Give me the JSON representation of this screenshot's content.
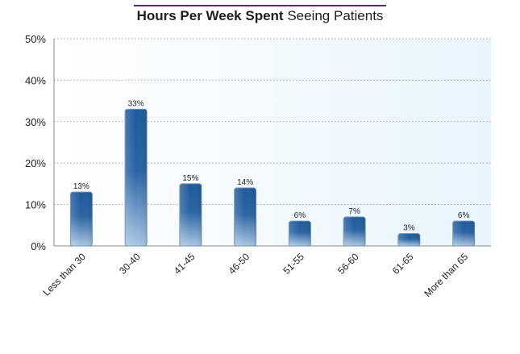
{
  "chart_data": {
    "type": "bar",
    "title": "Hours Per Week Spent Seeing Patients",
    "title_bold": "Hours Per Week Spent",
    "title_regular": "Seeing Patients",
    "categories": [
      "Less than 30",
      "30-40",
      "41-45",
      "46-50",
      "51-55",
      "56-60",
      "61-65",
      "More than 65"
    ],
    "values": [
      13,
      33,
      15,
      14,
      6,
      7,
      3,
      6
    ],
    "data_labels": [
      "13%",
      "33%",
      "15%",
      "14%",
      "6%",
      "7%",
      "3%",
      "6%"
    ],
    "y_ticks": [
      "0%",
      "10%",
      "20%",
      "30%",
      "40%",
      "50%"
    ],
    "y_tick_values": [
      0,
      10,
      20,
      30,
      40,
      50
    ],
    "ylim": [
      0,
      50
    ],
    "xlabel": "",
    "ylabel": "",
    "grid": true,
    "colors": {
      "bar_top": "#1f5a9b",
      "bar_bottom": "#a9c6e3",
      "plot_bg_left": "#ffffff",
      "plot_bg_right": "#e8f5fd",
      "grid": "#9aa0a6",
      "title_rule": "#5b2a6e"
    }
  }
}
